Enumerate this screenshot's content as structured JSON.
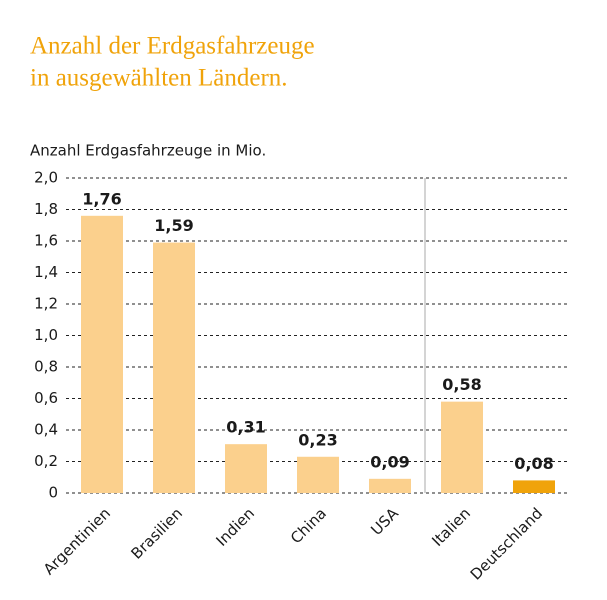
{
  "chart_data": {
    "type": "bar",
    "title": [
      "Anzahl der Erdgasfahrzeuge",
      "in ausgewählten Ländern."
    ],
    "y_axis_label": "Anzahl Erdgasfahrzeuge in Mio.",
    "categories": [
      "Argentinien",
      "Brasilien",
      "Indien",
      "China",
      "USA",
      "Italien",
      "Deutschland"
    ],
    "values": [
      1.76,
      1.59,
      0.31,
      0.23,
      0.09,
      0.58,
      0.08
    ],
    "value_labels": [
      "1,76",
      "1,59",
      "0,31",
      "0,23",
      "0,09",
      "0,58",
      "0,08"
    ],
    "colors": [
      "#fbd08d",
      "#fbd08d",
      "#fbd08d",
      "#fbd08d",
      "#fbd08d",
      "#fbd08d",
      "#f0a30a"
    ],
    "ylim": [
      0,
      2.0
    ],
    "yticks": [
      0,
      {
        "value": 0.2,
        "label": "0,2"
      },
      {
        "value": 0.4,
        "label": "0,4"
      },
      {
        "value": 0.6,
        "label": "0,6"
      },
      {
        "value": 0.8,
        "label": "0,8"
      },
      {
        "value": 1.0,
        "label": "1,0"
      },
      {
        "value": 1.2,
        "label": "1,2"
      },
      {
        "value": 1.4,
        "label": "1,4"
      },
      {
        "value": 1.6,
        "label": "1,6"
      },
      {
        "value": 1.8,
        "label": "1,8"
      },
      {
        "value": 2.0,
        "label": "2,0"
      }
    ],
    "grid": true
  }
}
